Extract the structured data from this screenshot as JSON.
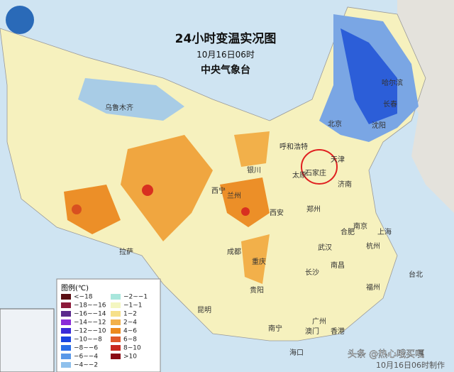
{
  "header": {
    "title": "24小时变温实况图",
    "date": "10月16日06时",
    "agency": "中央气象台"
  },
  "legend": {
    "title": "图例(℃)",
    "entries": [
      {
        "label": "<−18",
        "color": "#5a0f14"
      },
      {
        "label": "−18~−16",
        "color": "#8c1a3a"
      },
      {
        "label": "−16~−14",
        "color": "#5a2a8c"
      },
      {
        "label": "−14~−12",
        "color": "#8a2ad8"
      },
      {
        "label": "−12~−10",
        "color": "#3a2ad8"
      },
      {
        "label": "−10~−8",
        "color": "#1a44e0"
      },
      {
        "label": "−8~−6",
        "color": "#2a6ee8"
      },
      {
        "label": "−6~−4",
        "color": "#5a98e8"
      },
      {
        "label": "−4~−2",
        "color": "#8fc0ec"
      },
      {
        "label": "−2~−1",
        "color": "#a8e6dc"
      },
      {
        "label": "−1~1",
        "color": "#f4f6c0"
      },
      {
        "label": "1~2",
        "color": "#f6e08a"
      },
      {
        "label": "2~4",
        "color": "#f2b04a"
      },
      {
        "label": "4~6",
        "color": "#ec8a1e"
      },
      {
        "label": "6~8",
        "color": "#e05a2a"
      },
      {
        "label": "8~10",
        "color": "#c8281e"
      },
      {
        "label": ">10",
        "color": "#8a0a14"
      }
    ]
  },
  "cities": [
    "乌鲁木齐",
    "哈尔滨",
    "长春",
    "沈阳",
    "北京",
    "天津",
    "呼和浩特",
    "银川",
    "太原",
    "石家庄",
    "济南",
    "西宁",
    "兰州",
    "郑州",
    "西安",
    "拉萨",
    "成都",
    "重庆",
    "武汉",
    "合肥",
    "南京",
    "上海",
    "杭州",
    "南昌",
    "长沙",
    "福州",
    "贵阳",
    "昆明",
    "台北",
    "南宁",
    "广州",
    "澳门",
    "香港",
    "海口"
  ],
  "watermark": {
    "source": "头条 @热心哦买嘎",
    "made": "10月16日06时制作"
  }
}
